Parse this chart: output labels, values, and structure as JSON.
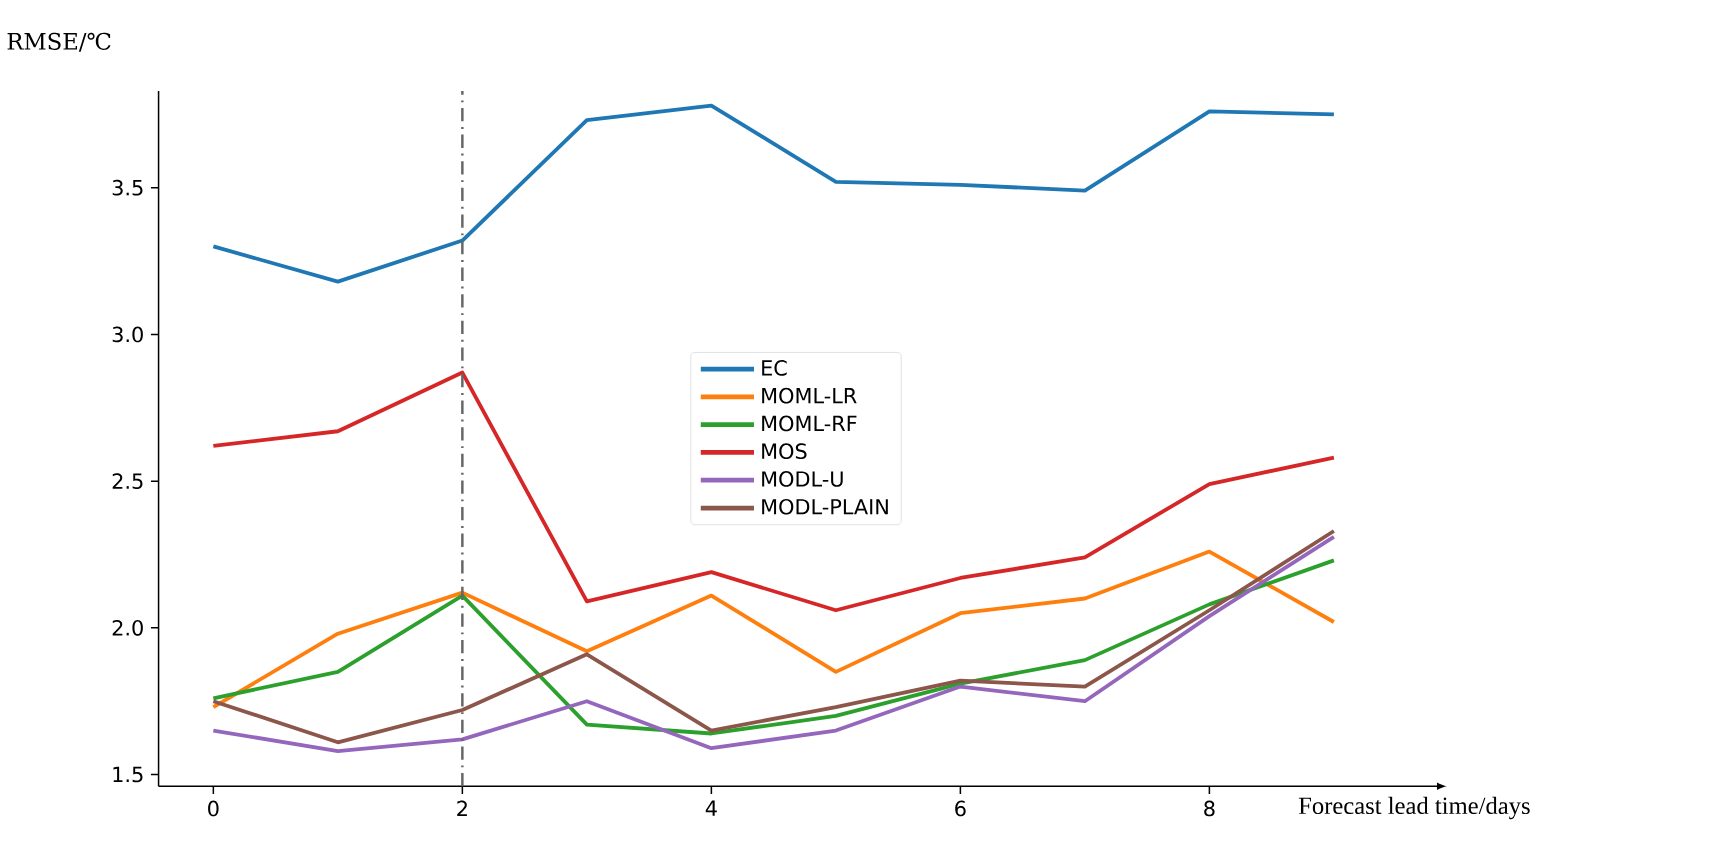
{
  "chart_data": {
    "type": "line",
    "xlabel": "Forecast lead time/days",
    "ylabel": "RMSE/℃",
    "x": [
      0,
      1,
      2,
      3,
      4,
      5,
      6,
      7,
      8,
      9
    ],
    "xlim": [
      -0.44,
      9.8
    ],
    "ylim": [
      1.46,
      3.83
    ],
    "xticks": [
      0,
      2,
      4,
      6,
      8
    ],
    "yticks": [
      1.5,
      {
        "value": 2,
        "label": "2.0"
      },
      2.5,
      {
        "value": 3,
        "label": "3.0"
      },
      3.5
    ],
    "series": [
      {
        "name": "EC",
        "color": "#1f77b4",
        "values": [
          3.3,
          3.18,
          3.32,
          3.73,
          3.78,
          3.52,
          3.51,
          3.49,
          3.76,
          3.75
        ]
      },
      {
        "name": "MOML-LR",
        "color": "#ff7f0e",
        "values": [
          1.73,
          1.98,
          2.12,
          1.92,
          2.11,
          1.85,
          2.05,
          2.1,
          2.26,
          2.02
        ]
      },
      {
        "name": "MOML-RF",
        "color": "#2ca02c",
        "values": [
          1.76,
          1.85,
          2.11,
          1.67,
          1.64,
          1.7,
          1.81,
          1.89,
          2.08,
          2.23
        ]
      },
      {
        "name": "MOS",
        "color": "#d62728",
        "values": [
          2.62,
          2.67,
          2.87,
          2.09,
          2.19,
          2.06,
          2.17,
          2.24,
          2.49,
          2.58
        ]
      },
      {
        "name": "MODL-U",
        "color": "#9467bd",
        "values": [
          1.65,
          1.58,
          1.62,
          1.75,
          1.59,
          1.65,
          1.8,
          1.75,
          2.04,
          2.31
        ]
      },
      {
        "name": "MODL-PLAIN",
        "color": "#8c564b",
        "values": [
          1.75,
          1.61,
          1.72,
          1.91,
          1.65,
          1.73,
          1.82,
          1.8,
          2.06,
          2.33
        ]
      }
    ],
    "ref_lines": [
      {
        "axis": "x",
        "value": 2,
        "color": "#666666",
        "line_style": "dashdot"
      }
    ],
    "legend": "center",
    "grid": false,
    "marker": "none",
    "line_style": "solid"
  }
}
